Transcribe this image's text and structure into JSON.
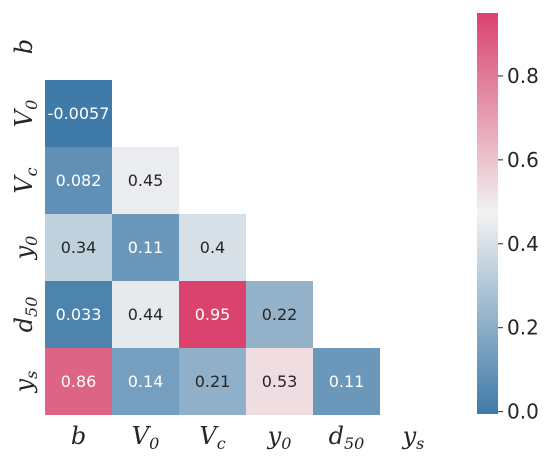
{
  "chart_data": {
    "type": "heatmap",
    "variables": [
      {
        "base": "b",
        "sub": ""
      },
      {
        "base": "V",
        "sub": "0"
      },
      {
        "base": "V",
        "sub": "c"
      },
      {
        "base": "y",
        "sub": "0"
      },
      {
        "base": "d",
        "sub": "50"
      },
      {
        "base": "y",
        "sub": "s"
      }
    ],
    "mask": "upper-triangle-including-diagonal",
    "cells": [
      {
        "row": 1,
        "col": 0,
        "value": -0.0057,
        "label": "-0.0057"
      },
      {
        "row": 2,
        "col": 0,
        "value": 0.082,
        "label": "0.082"
      },
      {
        "row": 2,
        "col": 1,
        "value": 0.45,
        "label": "0.45"
      },
      {
        "row": 3,
        "col": 0,
        "value": 0.34,
        "label": "0.34"
      },
      {
        "row": 3,
        "col": 1,
        "value": 0.11,
        "label": "0.11"
      },
      {
        "row": 3,
        "col": 2,
        "value": 0.4,
        "label": "0.4"
      },
      {
        "row": 4,
        "col": 0,
        "value": 0.033,
        "label": "0.033"
      },
      {
        "row": 4,
        "col": 1,
        "value": 0.44,
        "label": "0.44"
      },
      {
        "row": 4,
        "col": 2,
        "value": 0.95,
        "label": "0.95"
      },
      {
        "row": 4,
        "col": 3,
        "value": 0.22,
        "label": "0.22"
      },
      {
        "row": 5,
        "col": 0,
        "value": 0.86,
        "label": "0.86"
      },
      {
        "row": 5,
        "col": 1,
        "value": 0.14,
        "label": "0.14"
      },
      {
        "row": 5,
        "col": 2,
        "value": 0.21,
        "label": "0.21"
      },
      {
        "row": 5,
        "col": 3,
        "value": 0.53,
        "label": "0.53"
      },
      {
        "row": 5,
        "col": 4,
        "value": 0.11,
        "label": "0.11"
      }
    ],
    "colorbar": {
      "vmin": -0.0057,
      "vmax": 0.95,
      "ticks": [
        0.0,
        0.2,
        0.4,
        0.6,
        0.8
      ],
      "tick_labels": [
        "0.0",
        "0.2",
        "0.4",
        "0.6",
        "0.8"
      ],
      "colormap": "diverging blue-white-red",
      "colors": {
        "low": "#3f7aa8",
        "mid": "#f2f2f2",
        "high": "#d9436d"
      }
    },
    "grid": false
  }
}
